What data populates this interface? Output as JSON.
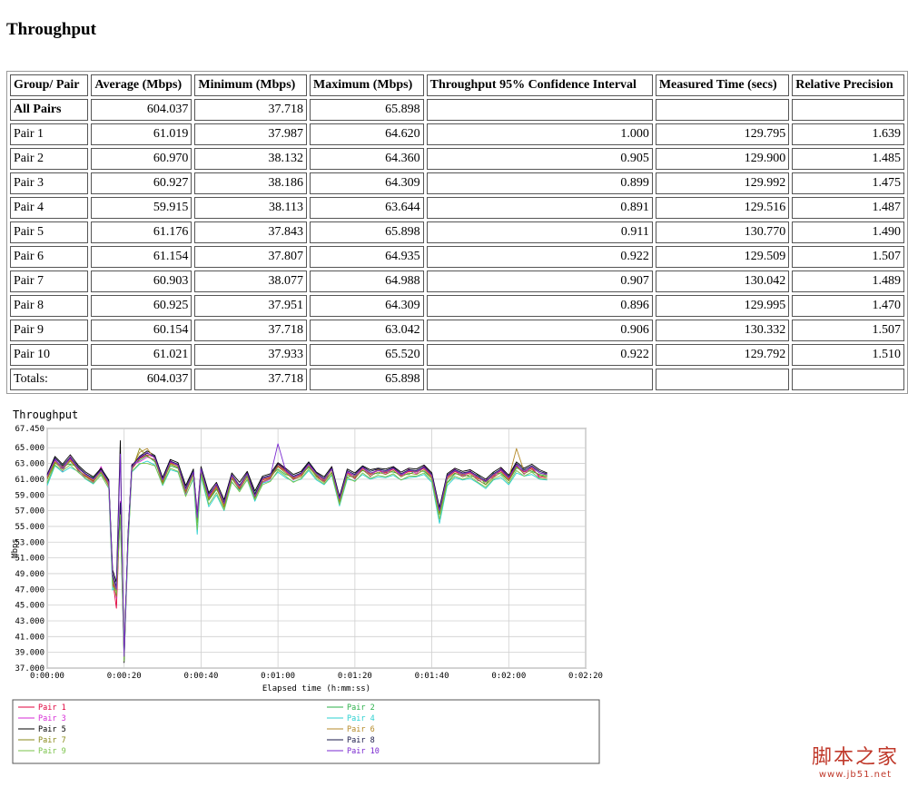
{
  "page": {
    "title": "Throughput"
  },
  "table": {
    "headers": [
      "Group/ Pair",
      "Average (Mbps)",
      "Minimum (Mbps)",
      "Maximum (Mbps)",
      "Throughput 95% Confidence Interval",
      "Measured Time (secs)",
      "Relative Precision"
    ],
    "rows": [
      [
        "All Pairs",
        "604.037",
        "37.718",
        "65.898",
        "",
        "",
        ""
      ],
      [
        "Pair 1",
        "61.019",
        "37.987",
        "64.620",
        "1.000",
        "129.795",
        "1.639"
      ],
      [
        "Pair 2",
        "60.970",
        "38.132",
        "64.360",
        "0.905",
        "129.900",
        "1.485"
      ],
      [
        "Pair 3",
        "60.927",
        "38.186",
        "64.309",
        "0.899",
        "129.992",
        "1.475"
      ],
      [
        "Pair 4",
        "59.915",
        "38.113",
        "63.644",
        "0.891",
        "129.516",
        "1.487"
      ],
      [
        "Pair 5",
        "61.176",
        "37.843",
        "65.898",
        "0.911",
        "130.770",
        "1.490"
      ],
      [
        "Pair 6",
        "61.154",
        "37.807",
        "64.935",
        "0.922",
        "129.509",
        "1.507"
      ],
      [
        "Pair 7",
        "60.903",
        "38.077",
        "64.988",
        "0.907",
        "130.042",
        "1.489"
      ],
      [
        "Pair 8",
        "60.925",
        "37.951",
        "64.309",
        "0.896",
        "129.995",
        "1.470"
      ],
      [
        "Pair 9",
        "60.154",
        "37.718",
        "63.042",
        "0.906",
        "130.332",
        "1.507"
      ],
      [
        "Pair 10",
        "61.021",
        "37.933",
        "65.520",
        "0.922",
        "129.792",
        "1.510"
      ],
      [
        "Totals:",
        "604.037",
        "37.718",
        "65.898",
        "",
        "",
        ""
      ]
    ]
  },
  "chart_data": {
    "type": "line",
    "title": "Throughput",
    "xlabel": "Elapsed time (h:mm:ss)",
    "ylabel": "Mbps",
    "xlim": [
      0,
      140
    ],
    "ylim": [
      37,
      67.45
    ],
    "x_ticks": [
      {
        "v": 0,
        "label": "0:00:00"
      },
      {
        "v": 20,
        "label": "0:00:20"
      },
      {
        "v": 40,
        "label": "0:00:40"
      },
      {
        "v": 60,
        "label": "0:01:00"
      },
      {
        "v": 80,
        "label": "0:01:20"
      },
      {
        "v": 100,
        "label": "0:01:40"
      },
      {
        "v": 120,
        "label": "0:02:00"
      },
      {
        "v": 140,
        "label": "0:02:20"
      }
    ],
    "y_ticks": [
      {
        "v": 37,
        "label": "37.000"
      },
      {
        "v": 39,
        "label": "39.000"
      },
      {
        "v": 41,
        "label": "41.000"
      },
      {
        "v": 43,
        "label": "43.000"
      },
      {
        "v": 45,
        "label": "45.000"
      },
      {
        "v": 47,
        "label": "47.000"
      },
      {
        "v": 49,
        "label": "49.000"
      },
      {
        "v": 51,
        "label": "51.000"
      },
      {
        "v": 53,
        "label": "53.000"
      },
      {
        "v": 55,
        "label": "55.000"
      },
      {
        "v": 57,
        "label": "57.000"
      },
      {
        "v": 59,
        "label": "59.000"
      },
      {
        "v": 61,
        "label": "61.000"
      },
      {
        "v": 63,
        "label": "63.000"
      },
      {
        "v": 65,
        "label": "65.000"
      },
      {
        "v": 67.45,
        "label": "67.450"
      }
    ],
    "grid": true,
    "legend_placement": "bottom",
    "x": [
      0,
      2,
      4,
      6,
      8,
      10,
      12,
      14,
      16,
      17,
      18,
      19,
      20,
      21,
      22,
      24,
      26,
      28,
      30,
      32,
      34,
      36,
      38,
      39,
      40,
      42,
      44,
      46,
      48,
      50,
      52,
      54,
      56,
      58,
      60,
      62,
      64,
      66,
      68,
      70,
      72,
      74,
      76,
      78,
      80,
      82,
      84,
      86,
      88,
      90,
      92,
      94,
      96,
      98,
      100,
      102,
      104,
      106,
      108,
      110,
      112,
      114,
      116,
      118,
      120,
      122,
      124,
      126,
      128,
      130
    ],
    "series": [
      {
        "name": "Pair 1",
        "color": "#e0003c",
        "values": [
          61.2,
          63.4,
          62.5,
          63.6,
          62.1,
          61.4,
          60.8,
          62.2,
          60.1,
          48.4,
          44.6,
          57.3,
          38.9,
          52.6,
          62.3,
          63.6,
          64.1,
          63.8,
          60.7,
          63.1,
          62.8,
          59.5,
          61.9,
          56.5,
          62.2,
          58.6,
          60.1,
          57.5,
          61.3,
          59.8,
          61.6,
          58.7,
          60.9,
          61.2,
          62.7,
          62.0,
          61.1,
          61.5,
          62.9,
          61.4,
          60.8,
          62.3,
          58.3,
          61.8,
          61.2,
          62.4,
          61.6,
          62.1,
          61.8,
          62.3,
          61.5,
          62.0,
          61.9,
          62.4,
          61.3,
          56.8,
          61.2,
          62.0,
          61.5,
          61.8,
          61.1,
          60.7,
          61.4,
          62.1,
          61.0,
          62.7,
          61.9,
          62.4,
          61.3,
          61.2
        ]
      },
      {
        "name": "Pair 2",
        "color": "#2bb04a",
        "values": [
          60.5,
          63.0,
          62.8,
          62.9,
          62.6,
          61.6,
          61.2,
          61.9,
          60.7,
          47.7,
          48.2,
          56.9,
          39.4,
          53.5,
          62.6,
          63.4,
          64.0,
          63.2,
          60.9,
          62.7,
          62.4,
          59.8,
          61.6,
          55.5,
          61.8,
          58.3,
          59.7,
          58.0,
          61.0,
          60.3,
          61.4,
          59.2,
          61.1,
          61.4,
          62.3,
          61.6,
          61.3,
          61.7,
          62.5,
          61.5,
          60.9,
          61.8,
          58.6,
          61.3,
          61.4,
          62.1,
          61.8,
          61.7,
          62.0,
          61.9,
          61.6,
          61.6,
          62.1,
          62.0,
          61.1,
          56.5,
          60.6,
          61.7,
          61.6,
          61.3,
          61.6,
          60.3,
          61.8,
          61.7,
          60.8,
          62.4,
          62.2,
          62.0,
          61.6,
          61.4
        ]
      },
      {
        "name": "Pair 3",
        "color": "#d62bd6",
        "values": [
          61.7,
          63.6,
          62.0,
          63.9,
          62.3,
          61.1,
          60.6,
          62.6,
          60.3,
          48.9,
          45.9,
          58.2,
          38.6,
          53.1,
          62.9,
          63.2,
          63.8,
          63.5,
          60.4,
          63.4,
          62.6,
          59.1,
          62.1,
          56.9,
          62.5,
          58.9,
          60.4,
          57.8,
          61.6,
          59.6,
          61.9,
          59.0,
          60.6,
          61.0,
          63.0,
          62.3,
          60.9,
          61.8,
          62.7,
          61.7,
          60.6,
          62.6,
          58.0,
          62.1,
          61.0,
          62.6,
          61.3,
          62.4,
          61.6,
          62.6,
          61.3,
          62.3,
          61.7,
          62.7,
          61.6,
          57.2,
          61.5,
          62.3,
          61.3,
          62.1,
          60.8,
          61.0,
          61.2,
          62.4,
          61.3,
          62.9,
          61.6,
          62.7,
          61.1,
          61.0
        ]
      },
      {
        "name": "Pair 4",
        "color": "#2bd0d0",
        "values": [
          60.2,
          62.7,
          61.9,
          62.5,
          62.0,
          61.0,
          60.4,
          61.6,
          59.8,
          46.9,
          47.5,
          56.2,
          38.1,
          52.0,
          61.9,
          62.9,
          63.3,
          62.8,
          60.2,
          62.2,
          61.9,
          58.9,
          61.0,
          54.0,
          61.3,
          57.5,
          59.0,
          57.0,
          60.6,
          59.6,
          60.9,
          58.2,
          60.5,
          60.8,
          61.9,
          61.2,
          60.7,
          61.0,
          62.1,
          60.9,
          60.3,
          61.5,
          57.6,
          61.0,
          60.8,
          61.6,
          61.0,
          61.3,
          61.2,
          61.5,
          60.9,
          61.2,
          61.3,
          61.6,
          60.6,
          55.4,
          60.2,
          61.2,
          60.9,
          61.1,
          60.5,
          59.8,
          60.9,
          61.2,
          60.3,
          61.8,
          61.4,
          61.6,
          61.0,
          60.9
        ]
      },
      {
        "name": "Pair 5",
        "color": "#000000",
        "values": [
          61.6,
          63.9,
          62.9,
          64.1,
          62.8,
          61.9,
          61.3,
          62.4,
          60.9,
          49.5,
          47.9,
          65.9,
          37.7,
          53.9,
          62.7,
          63.9,
          64.6,
          64.0,
          61.2,
          63.5,
          63.1,
          60.2,
          62.3,
          56.0,
          62.6,
          59.3,
          60.6,
          58.4,
          61.8,
          60.6,
          62.0,
          59.5,
          61.4,
          61.7,
          63.1,
          62.4,
          61.6,
          62.0,
          63.2,
          61.9,
          61.3,
          62.6,
          58.8,
          62.3,
          61.8,
          62.7,
          62.2,
          62.4,
          62.3,
          62.6,
          61.9,
          62.4,
          62.3,
          62.8,
          61.8,
          57.4,
          61.7,
          62.4,
          62.0,
          62.2,
          61.6,
          61.0,
          61.9,
          62.5,
          61.5,
          63.2,
          62.4,
          62.9,
          62.2,
          61.8
        ]
      },
      {
        "name": "Pair 6",
        "color": "#b58a28",
        "values": [
          61.3,
          63.2,
          62.6,
          63.4,
          62.5,
          61.5,
          60.9,
          62.0,
          60.5,
          48.1,
          46.8,
          57.5,
          38.3,
          53.2,
          62.4,
          64.4,
          64.9,
          63.6,
          60.8,
          63.0,
          62.7,
          59.6,
          61.8,
          56.2,
          62.3,
          58.7,
          60.2,
          57.7,
          61.4,
          60.0,
          61.6,
          58.9,
          61.0,
          61.3,
          62.9,
          62.1,
          61.2,
          61.6,
          63.0,
          61.6,
          60.9,
          62.2,
          58.4,
          61.9,
          61.4,
          62.5,
          61.7,
          62.2,
          61.9,
          62.4,
          61.6,
          62.1,
          61.9,
          62.5,
          61.4,
          56.9,
          61.3,
          62.1,
          61.6,
          61.9,
          61.2,
          60.6,
          61.5,
          62.2,
          61.1,
          64.9,
          62.0,
          62.5,
          61.8,
          61.5
        ]
      },
      {
        "name": "Pair 7",
        "color": "#8a8a1a",
        "values": [
          61.0,
          63.1,
          62.3,
          63.3,
          62.2,
          61.3,
          60.7,
          61.8,
          60.2,
          48.6,
          46.1,
          57.1,
          38.8,
          52.8,
          62.1,
          64.9,
          63.9,
          63.4,
          60.5,
          62.9,
          62.5,
          59.3,
          61.6,
          55.9,
          62.0,
          58.4,
          59.9,
          57.4,
          61.1,
          59.7,
          61.3,
          58.6,
          60.7,
          61.1,
          62.6,
          61.8,
          61.0,
          61.3,
          62.7,
          61.3,
          60.6,
          61.9,
          58.1,
          61.6,
          61.1,
          62.2,
          61.4,
          61.9,
          61.6,
          62.1,
          61.3,
          61.8,
          61.6,
          62.2,
          61.1,
          56.6,
          61.0,
          61.8,
          61.3,
          61.6,
          60.9,
          60.3,
          61.2,
          61.9,
          60.8,
          62.6,
          61.7,
          62.2,
          61.5,
          61.2
        ]
      },
      {
        "name": "Pair 8",
        "color": "#1a1a4a",
        "values": [
          61.5,
          63.7,
          62.7,
          63.8,
          62.6,
          61.7,
          61.1,
          62.3,
          60.7,
          49.0,
          47.3,
          58.0,
          38.4,
          53.6,
          62.8,
          63.7,
          64.3,
          63.9,
          61.0,
          63.3,
          62.9,
          59.9,
          62.1,
          56.4,
          62.4,
          59.1,
          60.3,
          58.1,
          61.6,
          60.2,
          61.8,
          59.1,
          61.2,
          61.5,
          62.9,
          62.2,
          61.4,
          61.8,
          63.1,
          61.8,
          61.1,
          62.4,
          58.6,
          62.1,
          61.6,
          62.6,
          62.0,
          62.3,
          62.1,
          62.5,
          61.7,
          62.2,
          62.1,
          62.6,
          61.6,
          57.1,
          61.5,
          62.2,
          61.8,
          62.0,
          61.4,
          60.8,
          61.7,
          62.3,
          61.3,
          63.0,
          62.2,
          62.7,
          62.0,
          61.7
        ]
      },
      {
        "name": "Pair 9",
        "color": "#7ac34a",
        "values": [
          60.6,
          62.8,
          62.1,
          62.8,
          61.9,
          61.1,
          60.5,
          61.5,
          59.9,
          47.4,
          46.5,
          56.5,
          37.9,
          52.3,
          62.0,
          63.0,
          63.0,
          62.7,
          60.3,
          62.4,
          62.0,
          58.8,
          61.2,
          54.6,
          61.5,
          57.8,
          59.3,
          57.1,
          60.7,
          59.4,
          61.0,
          58.4,
          60.3,
          60.7,
          62.1,
          61.4,
          60.6,
          61.1,
          62.3,
          61.1,
          60.4,
          61.6,
          57.8,
          61.2,
          60.7,
          61.8,
          61.1,
          61.5,
          61.3,
          61.7,
          60.9,
          61.4,
          61.4,
          61.8,
          60.8,
          55.9,
          60.5,
          61.4,
          61.0,
          61.3,
          60.6,
          60.0,
          61.0,
          61.5,
          60.5,
          62.1,
          61.4,
          61.9,
          61.1,
          61.0
        ]
      },
      {
        "name": "Pair 10",
        "color": "#7a2ad0",
        "values": [
          61.4,
          63.5,
          62.4,
          63.7,
          62.4,
          61.6,
          61.0,
          62.1,
          60.6,
          48.7,
          47.0,
          64.2,
          38.5,
          53.4,
          62.5,
          63.8,
          64.4,
          63.7,
          60.9,
          63.2,
          62.8,
          59.7,
          61.9,
          56.1,
          62.3,
          58.8,
          60.4,
          57.9,
          61.5,
          60.1,
          61.7,
          58.8,
          61.1,
          61.4,
          65.5,
          62.1,
          61.3,
          61.7,
          62.9,
          61.7,
          61.0,
          62.3,
          58.5,
          61.9,
          61.5,
          62.5,
          61.8,
          62.1,
          62.0,
          62.4,
          61.6,
          62.1,
          62.0,
          62.5,
          61.5,
          57.0,
          61.4,
          62.1,
          61.7,
          61.9,
          61.3,
          60.7,
          61.6,
          62.2,
          61.2,
          62.8,
          62.0,
          62.6,
          61.8,
          61.6
        ]
      }
    ]
  },
  "watermark": {
    "main": "脚本之家",
    "sub": "www.jb51.net"
  }
}
